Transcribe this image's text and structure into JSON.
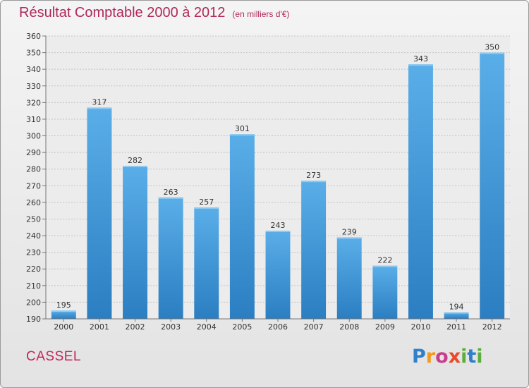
{
  "header": {
    "title": "Résultat Comptable 2000 à 2012",
    "unit": "(en milliers d'€)"
  },
  "footer": {
    "commune": "CASSEL",
    "logo_letters": [
      "P",
      "r",
      "o",
      "x",
      "i",
      "t",
      "i"
    ],
    "logo_colors": [
      "#2f7fc9",
      "#f29a1c",
      "#c93d8a",
      "#e84a2c",
      "#5cae3a",
      "#2f7fc9",
      "#5cae3a"
    ]
  },
  "colors": {
    "title": "#b0285a",
    "bar_light": "#5aaee8",
    "bar_dark": "#2b7ec1"
  },
  "chart_data": {
    "type": "bar",
    "title": "Résultat Comptable 2000 à 2012",
    "subtitle": "(en milliers d'€)",
    "categories": [
      "2000",
      "2001",
      "2002",
      "2003",
      "2004",
      "2005",
      "2006",
      "2007",
      "2008",
      "2009",
      "2010",
      "2011",
      "2012"
    ],
    "values": [
      195,
      317,
      282,
      263,
      257,
      301,
      243,
      273,
      239,
      222,
      343,
      194,
      350
    ],
    "ylim": [
      190,
      360
    ],
    "yticks": [
      190,
      200,
      210,
      220,
      230,
      240,
      250,
      260,
      270,
      280,
      290,
      300,
      310,
      320,
      330,
      340,
      350,
      360
    ],
    "grid": true,
    "legend": "none"
  }
}
